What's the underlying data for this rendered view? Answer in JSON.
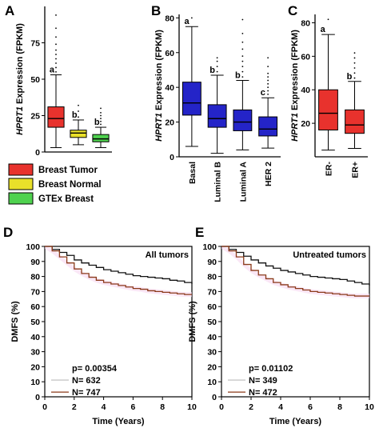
{
  "panels": {
    "A": {
      "letter": "A"
    },
    "B": {
      "letter": "B"
    },
    "C": {
      "letter": "C"
    },
    "D": {
      "letter": "D"
    },
    "E": {
      "letter": "E"
    }
  },
  "chart_data": [
    {
      "id": "A",
      "type": "box",
      "ylabel_gene": "HPRT1",
      "ylabel_rest": " Expression (FPKM)",
      "ylim": [
        0,
        100
      ],
      "yticks": [
        0,
        25,
        50,
        75
      ],
      "categories": [
        "Breast Tumor",
        "Breast Normal",
        "GTEx Breast"
      ],
      "colors": [
        "#e8322d",
        "#e9e02a",
        "#4fd24f"
      ],
      "boxes": [
        {
          "name": "Breast Tumor",
          "min": 3,
          "q1": 17,
          "median": 23,
          "q3": 31,
          "max": 53,
          "outliers": [
            55,
            58,
            61,
            64,
            67,
            70,
            74,
            79,
            85,
            94
          ],
          "sig": "a"
        },
        {
          "name": "Breast Normal",
          "min": 5,
          "q1": 10,
          "median": 13,
          "q3": 15,
          "max": 22,
          "outliers": [
            24,
            28,
            32
          ],
          "sig": "b"
        },
        {
          "name": "GTEx Breast",
          "min": 3,
          "q1": 7,
          "median": 9,
          "q3": 12,
          "max": 17,
          "outliers": [
            19,
            21,
            23,
            25,
            27,
            30
          ],
          "sig": "b"
        }
      ],
      "legend": [
        {
          "label": "Breast Tumor",
          "color": "#e8322d"
        },
        {
          "label": "Breast Normal",
          "color": "#e9e02a"
        },
        {
          "label": "GTEx Breast",
          "color": "#4fd24f"
        }
      ]
    },
    {
      "id": "B",
      "type": "box",
      "ylabel_gene": "HPRT1",
      "ylabel_rest": " Expression (FPKM)",
      "ylim": [
        0,
        82
      ],
      "yticks": [
        0,
        20,
        40,
        60,
        80
      ],
      "categories": [
        "Basal",
        "Luminal B",
        "Luminal A",
        "HER 2"
      ],
      "colors": [
        "#2424c8",
        "#2424c8",
        "#2424c8",
        "#2424c8"
      ],
      "boxes": [
        {
          "name": "Basal",
          "min": 6,
          "q1": 24,
          "median": 31,
          "q3": 43,
          "max": 75,
          "outliers": [
            80
          ],
          "sig": "a"
        },
        {
          "name": "Luminal B",
          "min": 2,
          "q1": 17,
          "median": 22,
          "q3": 30,
          "max": 47,
          "outliers": [
            49,
            52,
            55,
            57
          ],
          "sig": "b"
        },
        {
          "name": "Luminal A",
          "min": 4,
          "q1": 15,
          "median": 20,
          "q3": 27,
          "max": 44,
          "outliers": [
            46,
            49,
            52,
            55,
            58,
            62,
            66,
            71,
            79
          ],
          "sig": "b"
        },
        {
          "name": "HER 2",
          "min": 5,
          "q1": 12,
          "median": 16,
          "q3": 23,
          "max": 34,
          "outliers": [
            36,
            38,
            40,
            42,
            44,
            46,
            48,
            52,
            57
          ],
          "sig": "c"
        }
      ]
    },
    {
      "id": "C",
      "type": "box",
      "ylabel_gene": "HPRT1",
      "ylabel_rest": " Expression (FPKM)",
      "ylim": [
        0,
        85
      ],
      "yticks": [
        20,
        40,
        60,
        80
      ],
      "categories": [
        "ER-",
        "ER+"
      ],
      "colors": [
        "#e8322d",
        "#e8322d"
      ],
      "boxes": [
        {
          "name": "ER-",
          "min": 4,
          "q1": 16,
          "median": 26,
          "q3": 40,
          "max": 73,
          "outliers": [
            82
          ],
          "sig": "a"
        },
        {
          "name": "ER+",
          "min": 5,
          "q1": 14,
          "median": 19,
          "q3": 28,
          "max": 45,
          "outliers": [
            47,
            50,
            53,
            56,
            59,
            62
          ],
          "sig": "b"
        }
      ]
    },
    {
      "id": "D",
      "type": "line",
      "title": "All tumors",
      "ylabel": "DMFS (%)",
      "xlabel": "Time (Years)",
      "xlim": [
        0,
        10
      ],
      "ylim": [
        0,
        100
      ],
      "xticks": [
        0,
        2,
        4,
        6,
        8,
        10
      ],
      "yticks": [
        0,
        10,
        20,
        30,
        40,
        50,
        60,
        70,
        80,
        90,
        100
      ],
      "pvalue": "p= 0.00354",
      "series": [
        {
          "name": "N= 632",
          "color": "#111111",
          "x": [
            0,
            0.5,
            1,
            1.5,
            2,
            2.5,
            3,
            3.5,
            4,
            4.5,
            5,
            5.5,
            6,
            6.5,
            7,
            7.5,
            8,
            8.5,
            9,
            9.5,
            10
          ],
          "y": [
            100,
            98,
            96,
            94,
            91,
            89,
            87.5,
            86,
            84.5,
            83.5,
            82.5,
            81.5,
            80.5,
            80,
            79.5,
            79,
            78.5,
            77.5,
            77,
            76,
            75
          ]
        },
        {
          "name": "N= 747",
          "color": "#8b3a1a",
          "x": [
            0,
            0.5,
            1,
            1.5,
            2,
            2.5,
            3,
            3.5,
            4,
            4.5,
            5,
            5.5,
            6,
            6.5,
            7,
            7.5,
            8,
            8.5,
            9,
            9.5,
            10
          ],
          "y": [
            100,
            97,
            93,
            89,
            85,
            82,
            79.5,
            77.5,
            76,
            75,
            74,
            73,
            72,
            71.5,
            70.5,
            70,
            69.5,
            69,
            68.5,
            68,
            68
          ]
        }
      ]
    },
    {
      "id": "E",
      "type": "line",
      "title": "Untreated tumors",
      "ylabel": "DMFS (%)",
      "xlabel": "Time (Years)",
      "xlim": [
        0,
        10
      ],
      "ylim": [
        0,
        100
      ],
      "xticks": [
        0,
        2,
        4,
        6,
        8,
        10
      ],
      "yticks": [
        0,
        10,
        20,
        30,
        40,
        50,
        60,
        70,
        80,
        90,
        100
      ],
      "pvalue": "p= 0.01102",
      "series": [
        {
          "name": "N= 349",
          "color": "#111111",
          "x": [
            0,
            0.5,
            1,
            1.5,
            2,
            2.5,
            3,
            3.5,
            4,
            4.5,
            5,
            5.5,
            6,
            6.5,
            7,
            7.5,
            8,
            8.5,
            9,
            9.5,
            10
          ],
          "y": [
            100,
            98,
            96,
            93.5,
            91,
            89,
            87,
            85.5,
            84,
            83,
            82,
            81,
            80,
            79.5,
            79,
            78.5,
            78,
            77,
            76,
            75,
            74
          ]
        },
        {
          "name": "N= 472",
          "color": "#8b3a1a",
          "x": [
            0,
            0.5,
            1,
            1.5,
            2,
            2.5,
            3,
            3.5,
            4,
            4.5,
            5,
            5.5,
            6,
            6.5,
            7,
            7.5,
            8,
            8.5,
            9,
            9.5,
            10
          ],
          "y": [
            100,
            97,
            93,
            88,
            84,
            81,
            78.5,
            76,
            74.5,
            73,
            72,
            71,
            70,
            69.5,
            69,
            68.5,
            68,
            67.5,
            67,
            67,
            67
          ]
        }
      ]
    }
  ]
}
